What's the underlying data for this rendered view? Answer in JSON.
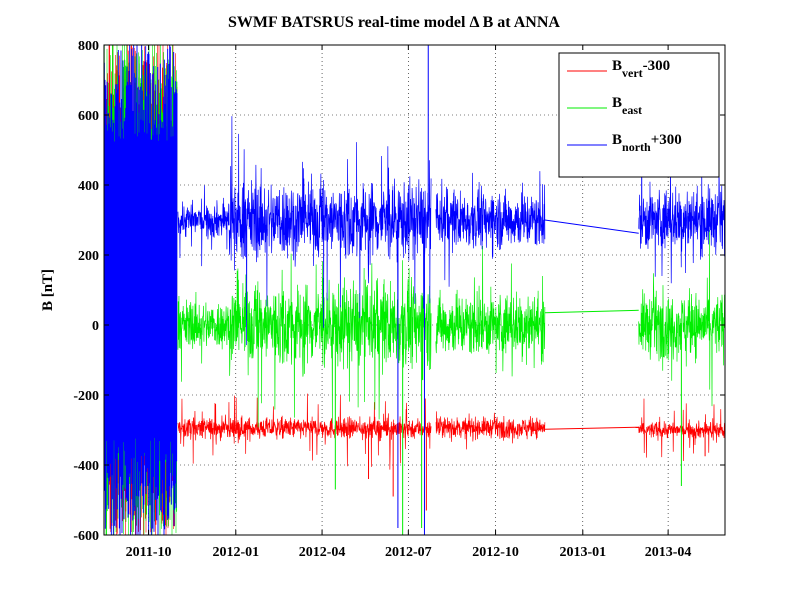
{
  "chart_data": {
    "type": "line",
    "title": "SWMF BATSRUS real-time model  Δ B at ANNA",
    "xlabel": "",
    "ylabel": "B [nT]",
    "ylim": [
      -600,
      800
    ],
    "xlim": [
      "2011-08-15",
      "2013-05-31"
    ],
    "y_ticks": [
      -600,
      -400,
      -200,
      0,
      200,
      400,
      600,
      800
    ],
    "y_tick_labels": [
      "-600",
      "-400",
      "-200",
      "0",
      "200",
      "400",
      "600",
      "800"
    ],
    "x_ticks": [
      "2011-10-01",
      "2012-01-01",
      "2012-04-01",
      "2012-07-01",
      "2012-10-01",
      "2013-01-01",
      "2013-04-01"
    ],
    "x_tick_labels": [
      "2011-10",
      "2012-01",
      "2012-04",
      "2012-07",
      "2012-10",
      "2013-01",
      "2013-04"
    ],
    "grid": true,
    "legend_position": "top-right",
    "legend": [
      {
        "main": "B",
        "sub": "vert",
        "suffix": "-300",
        "color": "#ff0000"
      },
      {
        "main": "B",
        "sub": "east",
        "suffix": "",
        "color": "#00ee00"
      },
      {
        "main": "B",
        "sub": "north",
        "suffix": "+300",
        "color": "#0000ff"
      }
    ],
    "series": [
      {
        "name": "Bvert-300",
        "color": "#ff0000",
        "segments": [
          {
            "start": "2011-11-01",
            "end": "2012-07-25",
            "mean": -295,
            "noise": 15,
            "spikes": 70
          },
          {
            "start": "2012-07-30",
            "end": "2012-11-22",
            "mean": -293,
            "noise": 14,
            "spikes": 40
          },
          {
            "start": "2013-03-01",
            "end": "2013-05-31",
            "mean": -300,
            "noise": 12,
            "spikes": 50
          }
        ],
        "bridges": [
          {
            "x": [
              "2012-11-22",
              "2013-03-01"
            ],
            "y": [
              -298,
              -292
            ]
          }
        ],
        "extremes": [
          {
            "x": "2012-06-15",
            "y": -490
          },
          {
            "x": "2012-07-20",
            "y": -530
          },
          {
            "x": "2012-05-20",
            "y": -440
          },
          {
            "x": "2013-05-10",
            "y": -375
          }
        ]
      },
      {
        "name": "Beast",
        "color": "#00ee00",
        "segments": [
          {
            "start": "2011-11-01",
            "end": "2011-12-25",
            "mean": 0,
            "noise": 35,
            "spikes": 80
          },
          {
            "start": "2011-12-25",
            "end": "2012-07-25",
            "mean": 0,
            "noise": 60,
            "spikes": 180
          },
          {
            "start": "2012-07-30",
            "end": "2012-11-22",
            "mean": 0,
            "noise": 45,
            "spikes": 130
          },
          {
            "start": "2013-03-01",
            "end": "2013-05-31",
            "mean": 0,
            "noise": 45,
            "spikes": 140
          }
        ],
        "bridges": [
          {
            "x": [
              "2012-11-22",
              "2013-03-01"
            ],
            "y": [
              35,
              42
            ]
          }
        ],
        "extremes": [
          {
            "x": "2012-04-15",
            "y": -470
          },
          {
            "x": "2012-06-25",
            "y": -600
          },
          {
            "x": "2012-07-15",
            "y": -580
          },
          {
            "x": "2013-04-15",
            "y": -460
          }
        ]
      },
      {
        "name": "Bnorth+300",
        "color": "#0000ff",
        "segments": [
          {
            "start": "2011-11-01",
            "end": "2011-12-25",
            "mean": 300,
            "noise": 25,
            "spikes": 60
          },
          {
            "start": "2011-12-25",
            "end": "2012-07-25",
            "mean": 300,
            "noise": 55,
            "spikes": 200
          },
          {
            "start": "2012-07-30",
            "end": "2012-11-22",
            "mean": 300,
            "noise": 40,
            "spikes": 130
          },
          {
            "start": "2013-03-01",
            "end": "2013-05-31",
            "mean": 300,
            "noise": 45,
            "spikes": 160
          }
        ],
        "bridges": [
          {
            "x": [
              "2012-11-22",
              "2013-03-01"
            ],
            "y": [
              300,
              262
            ]
          }
        ],
        "extremes": [
          {
            "x": "2012-06-20",
            "y": -580
          },
          {
            "x": "2012-07-18",
            "y": -600
          },
          {
            "x": "2012-07-22",
            "y": 800
          }
        ]
      }
    ],
    "saturated_block": {
      "start": "2011-08-15",
      "end": "2011-10-31",
      "ymin": -600,
      "ymax": 800
    }
  }
}
